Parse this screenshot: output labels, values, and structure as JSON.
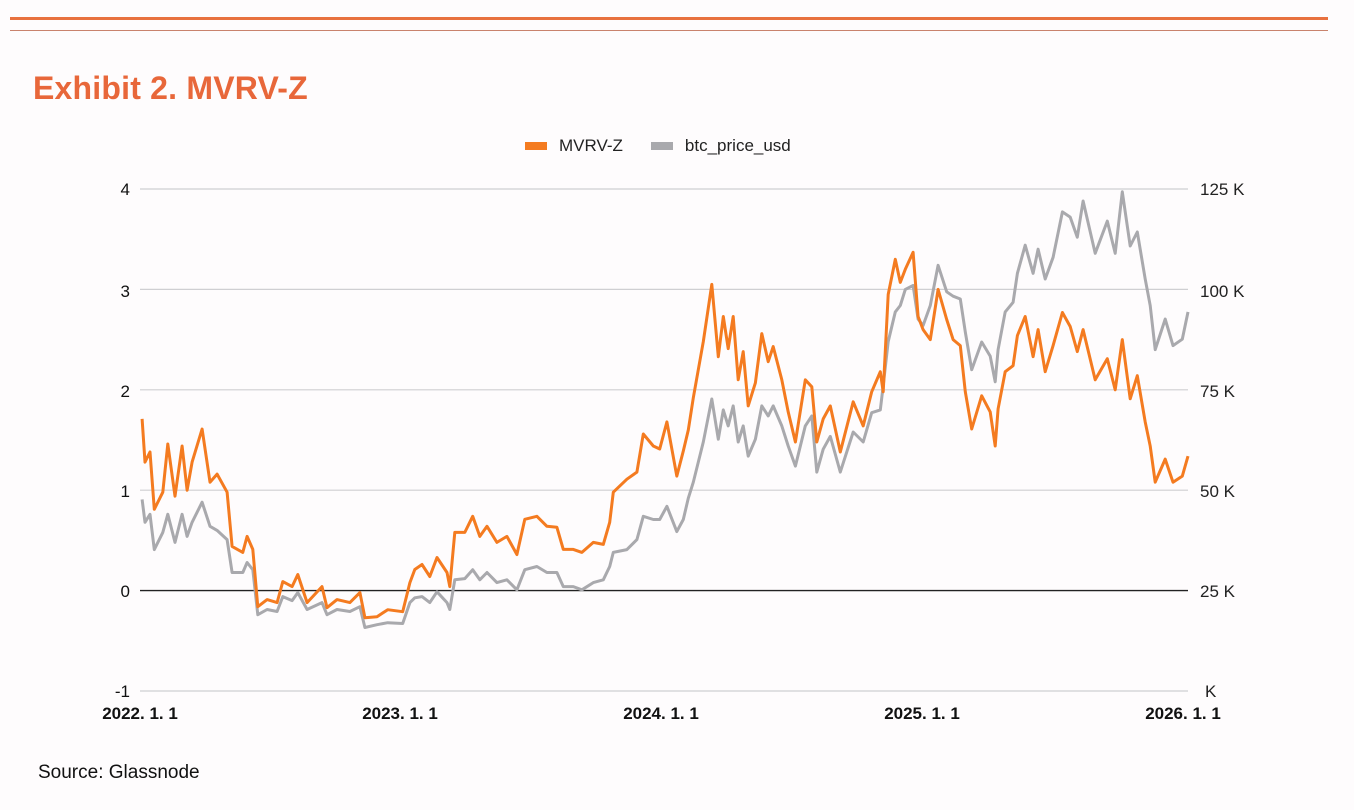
{
  "title": "Exhibit 2. MVRV-Z",
  "source": "Source: Glassnode",
  "colors": {
    "accent": "#e8673a",
    "mvrv": "#f47b20",
    "price": "#a9a9ad",
    "grid": "#cfcfd2",
    "zero_line": "#222222"
  },
  "chart_data": {
    "type": "line",
    "title": "",
    "legend_position": "top",
    "grid": true,
    "legend": [
      "MVRV-Z",
      "btc_price_usd"
    ],
    "x_ticks": [
      "2022. 1. 1",
      "2023. 1. 1",
      "2024. 1. 1",
      "2025. 1. 1",
      "2026. 1. 1"
    ],
    "x_tick_dates": [
      "2022-01-01",
      "2023-01-01",
      "2024-01-01",
      "2025-01-01",
      "2026-01-01"
    ],
    "xlim": [
      "2022-01-01",
      "2026-01-01"
    ],
    "y_left": {
      "ticks": [
        "4",
        "3",
        "2",
        "1",
        "0",
        "-1"
      ],
      "ylim": [
        -1,
        4
      ]
    },
    "y_right": {
      "ticks": [
        "125 K",
        "100 K",
        "75 K",
        "50 K",
        "25 K",
        "K"
      ],
      "ylim": [
        0,
        125000
      ]
    },
    "x": [
      "2022-01-04",
      "2022-01-08",
      "2022-01-15",
      "2022-01-21",
      "2022-02-02",
      "2022-02-09",
      "2022-02-19",
      "2022-03-01",
      "2022-03-08",
      "2022-03-15",
      "2022-03-29",
      "2022-04-09",
      "2022-04-19",
      "2022-05-03",
      "2022-05-10",
      "2022-05-25",
      "2022-05-31",
      "2022-06-08",
      "2022-06-15",
      "2022-06-28",
      "2022-07-12",
      "2022-07-20",
      "2022-08-02",
      "2022-08-10",
      "2022-08-23",
      "2022-09-13",
      "2022-09-20",
      "2022-10-04",
      "2022-10-22",
      "2022-11-05",
      "2022-11-12",
      "2022-11-29",
      "2022-12-14",
      "2023-01-04",
      "2023-01-14",
      "2023-01-21",
      "2023-01-31",
      "2023-02-11",
      "2023-02-21",
      "2023-03-07",
      "2023-03-11",
      "2023-03-18",
      "2023-04-01",
      "2023-04-12",
      "2023-04-22",
      "2023-05-02",
      "2023-05-16",
      "2023-05-30",
      "2023-06-13",
      "2023-06-24",
      "2023-07-11",
      "2023-07-25",
      "2023-08-08",
      "2023-08-17",
      "2023-08-31",
      "2023-09-12",
      "2023-09-28",
      "2023-10-12",
      "2023-10-21",
      "2023-10-26",
      "2023-11-14",
      "2023-11-28",
      "2023-12-07",
      "2023-12-21",
      "2023-12-30",
      "2024-01-09",
      "2024-01-23",
      "2024-02-01",
      "2024-02-08",
      "2024-02-15",
      "2024-02-29",
      "2024-03-12",
      "2024-03-21",
      "2024-03-28",
      "2024-04-04",
      "2024-04-11",
      "2024-04-18",
      "2024-04-25",
      "2024-05-02",
      "2024-05-12",
      "2024-05-21",
      "2024-05-30",
      "2024-06-06",
      "2024-06-18",
      "2024-06-27",
      "2024-07-07",
      "2024-07-21",
      "2024-07-30",
      "2024-08-06",
      "2024-08-15",
      "2024-08-25",
      "2024-09-08",
      "2024-09-26",
      "2024-10-10",
      "2024-10-22",
      "2024-11-03",
      "2024-11-07",
      "2024-11-14",
      "2024-11-24",
      "2024-12-01",
      "2024-12-08",
      "2024-12-19",
      "2024-12-26",
      "2025-01-02",
      "2025-01-12",
      "2025-01-23",
      "2025-02-04",
      "2025-02-13",
      "2025-02-23",
      "2025-03-02",
      "2025-03-11",
      "2025-03-25",
      "2025-04-06",
      "2025-04-13",
      "2025-04-17",
      "2025-04-27",
      "2025-05-08",
      "2025-05-14",
      "2025-05-25",
      "2025-06-05",
      "2025-06-12",
      "2025-06-22",
      "2025-07-03",
      "2025-07-16",
      "2025-07-27",
      "2025-08-06",
      "2025-08-14",
      "2025-08-31",
      "2025-09-17",
      "2025-09-28",
      "2025-10-08",
      "2025-10-19",
      "2025-10-29",
      "2025-11-09",
      "2025-11-16",
      "2025-11-23",
      "2025-12-07",
      "2025-12-18",
      "2025-12-31",
      "2026-01-08"
    ],
    "series": [
      {
        "name": "MVRV-Z",
        "axis": "left",
        "color": "#f47b20",
        "values": [
          1.71,
          1.28,
          1.38,
          0.81,
          0.98,
          1.46,
          0.94,
          1.44,
          1.0,
          1.28,
          1.61,
          1.08,
          1.16,
          0.98,
          0.44,
          0.38,
          0.54,
          0.41,
          -0.16,
          -0.09,
          -0.12,
          0.09,
          0.04,
          0.16,
          -0.12,
          0.04,
          -0.17,
          -0.09,
          -0.12,
          -0.02,
          -0.27,
          -0.26,
          -0.19,
          -0.21,
          0.08,
          0.21,
          0.26,
          0.14,
          0.33,
          0.18,
          0.04,
          0.58,
          0.58,
          0.74,
          0.54,
          0.64,
          0.48,
          0.54,
          0.36,
          0.71,
          0.74,
          0.64,
          0.63,
          0.41,
          0.41,
          0.38,
          0.48,
          0.46,
          0.68,
          0.98,
          1.11,
          1.18,
          1.56,
          1.44,
          1.41,
          1.68,
          1.14,
          1.39,
          1.6,
          1.92,
          2.48,
          3.05,
          2.33,
          2.73,
          2.41,
          2.73,
          2.1,
          2.38,
          1.84,
          2.07,
          2.56,
          2.28,
          2.43,
          2.1,
          1.78,
          1.48,
          2.1,
          2.03,
          1.48,
          1.71,
          1.84,
          1.38,
          1.88,
          1.64,
          1.98,
          2.18,
          1.98,
          2.95,
          3.3,
          3.07,
          3.2,
          3.37,
          2.73,
          2.6,
          2.5,
          3.0,
          2.7,
          2.5,
          2.44,
          1.98,
          1.61,
          1.94,
          1.78,
          1.44,
          1.81,
          2.18,
          2.24,
          2.54,
          2.73,
          2.33,
          2.6,
          2.18,
          2.44,
          2.77,
          2.63,
          2.38,
          2.6,
          2.1,
          2.31,
          2.0,
          2.5,
          1.91,
          2.14,
          1.68,
          1.44,
          1.08,
          1.31,
          1.08,
          1.14,
          1.34
        ]
      },
      {
        "name": "btc_price_usd",
        "axis": "right",
        "color": "#a9a9ad",
        "values": [
          47700,
          42000,
          44000,
          35200,
          39500,
          44000,
          37000,
          44000,
          38500,
          42000,
          47000,
          41000,
          40000,
          37700,
          29500,
          29500,
          32000,
          30200,
          19000,
          20300,
          19800,
          23500,
          22500,
          24500,
          20300,
          22000,
          19000,
          20300,
          19800,
          21000,
          15800,
          16500,
          17000,
          16800,
          22000,
          23200,
          23500,
          22000,
          24700,
          22000,
          20300,
          27700,
          28000,
          30200,
          27700,
          29500,
          27000,
          27700,
          25200,
          30200,
          31000,
          29500,
          29500,
          26000,
          26000,
          25200,
          27000,
          27700,
          31000,
          34500,
          35200,
          37700,
          43500,
          42700,
          42700,
          46000,
          39700,
          42700,
          48000,
          52000,
          62000,
          72700,
          62700,
          70000,
          66000,
          71000,
          62000,
          66000,
          58500,
          62700,
          71000,
          68500,
          71000,
          66000,
          61000,
          56000,
          66000,
          68500,
          54500,
          60200,
          63400,
          54500,
          64500,
          62000,
          69300,
          70000,
          76000,
          87000,
          94400,
          96000,
          100000,
          101000,
          92600,
          91000,
          96000,
          106000,
          99400,
          98300,
          97600,
          89400,
          80000,
          86900,
          83400,
          77000,
          85000,
          94400,
          96800,
          104000,
          111000,
          104000,
          110000,
          102600,
          108000,
          119300,
          118000,
          113000,
          122000,
          109000,
          117000,
          109000,
          124300,
          110800,
          114300,
          102600,
          96000,
          85000,
          92600,
          86000,
          87600,
          94400
        ]
      }
    ]
  }
}
